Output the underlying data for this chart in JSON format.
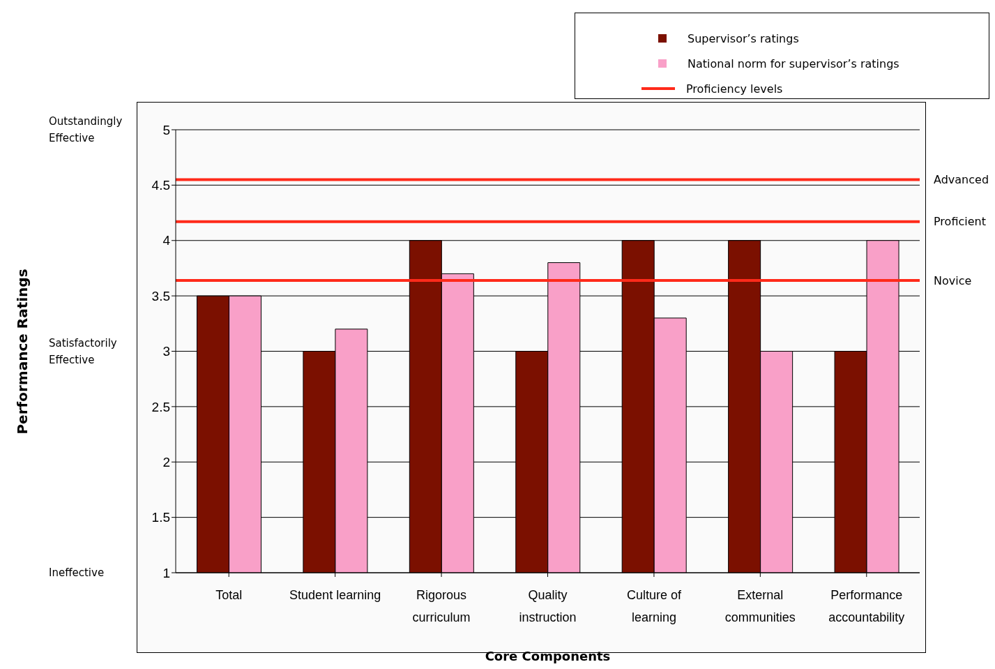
{
  "chart_data": {
    "type": "bar",
    "xlabel": "Core Components",
    "categories": [
      "Total",
      "Student learning",
      "Rigorous curriculum",
      "Quality instruction",
      "Culture of learning",
      "External communities",
      "Performance accountability"
    ],
    "series": [
      {
        "name": "Supervisor’s ratings",
        "color": "#7b1000",
        "values": [
          3.5,
          3,
          4,
          3,
          4,
          4,
          3
        ]
      },
      {
        "name": "National norm for supervisor’s ratings",
        "color": "#f9a0c8",
        "values": [
          3.5,
          3.2,
          3.7,
          3.8,
          3.3,
          3,
          4
        ]
      }
    ],
    "ylim": [
      1,
      5
    ],
    "yticks": [
      1,
      1.5,
      2,
      2.5,
      3,
      3.5,
      4,
      4.5,
      5
    ],
    "ref_lines": [
      {
        "axis": "y",
        "value": 4.55,
        "label": "Advanced",
        "color": "#ff2a1a"
      },
      {
        "axis": "y",
        "value": 4.17,
        "label": "Proficient",
        "color": "#ff2a1a"
      },
      {
        "axis": "y",
        "value": 3.64,
        "label": "Novice",
        "color": "#ff2a1a"
      }
    ],
    "annotations": [
      "Performance Ratings",
      "Proficiency levels",
      "Outstandingly Effective",
      "Satisfactorily Effective",
      "Ineffective"
    ],
    "grid": "y",
    "legend": "top right"
  }
}
